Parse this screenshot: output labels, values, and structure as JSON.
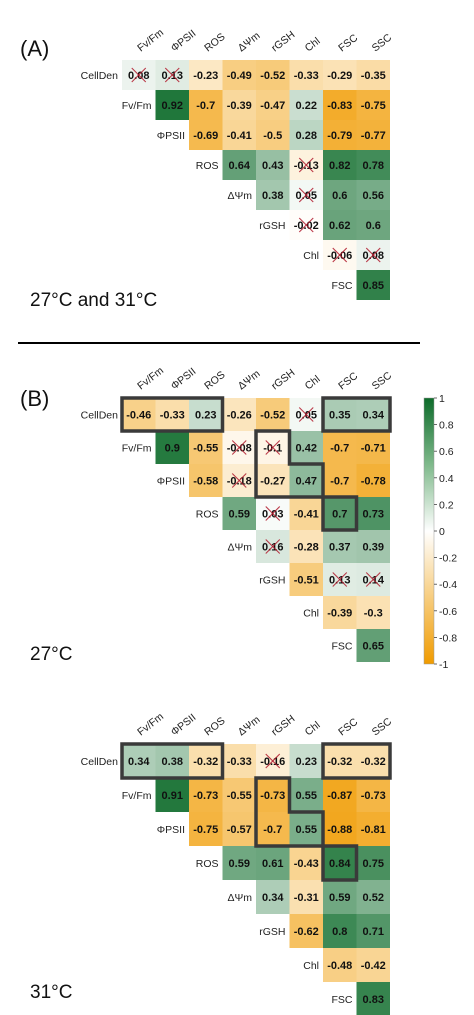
{
  "panels": [
    {
      "tag": "(A)",
      "condition": "27°C and 31°C",
      "row_labels": [
        "CellDen",
        "Fv/Fm",
        "ΦPSII",
        "ROS",
        "ΔΨm",
        "rGSH",
        "Chl",
        "FSC"
      ],
      "col_labels": [
        "Fv/Fm",
        "ΦPSII",
        "ROS",
        "ΔΨm",
        "rGSH",
        "Chl",
        "FSC",
        "SSC"
      ],
      "cells": [
        [
          "0.08",
          "0.13",
          "-0.23",
          "-0.49",
          "-0.52",
          "-0.33",
          "-0.29",
          "-0.35"
        ],
        [
          "0.92",
          "-0.7",
          "-0.39",
          "-0.47",
          "0.22",
          "-0.83",
          "-0.75"
        ],
        [
          "-0.69",
          "-0.41",
          "-0.5",
          "0.28",
          "-0.79",
          "-0.77"
        ],
        [
          "0.64",
          "0.43",
          "-0.13",
          "0.82",
          "0.78"
        ],
        [
          "0.38",
          "0.05",
          "0.6",
          "0.56"
        ],
        [
          "-0.02",
          "0.62",
          "0.6"
        ],
        [
          "-0.06",
          "0.08"
        ],
        [
          "0.85"
        ]
      ],
      "crossed": [
        [
          0,
          0
        ],
        [
          0,
          1
        ],
        [
          3,
          2
        ],
        [
          4,
          1
        ],
        [
          5,
          0
        ],
        [
          6,
          0
        ],
        [
          6,
          1
        ]
      ],
      "highlight_groups": []
    },
    {
      "tag": "(B)",
      "condition": "27°C",
      "row_labels": [
        "CellDen",
        "Fv/Fm",
        "ΦPSII",
        "ROS",
        "ΔΨm",
        "rGSH",
        "Chl",
        "FSC"
      ],
      "col_labels": [
        "Fv/Fm",
        "ΦPSII",
        "ROS",
        "ΔΨm",
        "rGSH",
        "Chl",
        "FSC",
        "SSC"
      ],
      "cells": [
        [
          "-0.46",
          "-0.33",
          "0.23",
          "-0.26",
          "-0.52",
          "0.05",
          "0.35",
          "0.34"
        ],
        [
          "0.9",
          "-0.55",
          "-0.08",
          "-0.1",
          "0.42",
          "-0.7",
          "-0.71"
        ],
        [
          "-0.58",
          "-0.18",
          "-0.27",
          "0.47",
          "-0.7",
          "-0.78"
        ],
        [
          "0.59",
          "0.03",
          "-0.41",
          "0.7",
          "0.73"
        ],
        [
          "0.16",
          "-0.28",
          "0.37",
          "0.39"
        ],
        [
          "-0.51",
          "0.13",
          "0.14"
        ],
        [
          "-0.39",
          "-0.3"
        ],
        [
          "0.65"
        ]
      ],
      "crossed": [
        [
          0,
          5
        ],
        [
          1,
          2
        ],
        [
          1,
          3
        ],
        [
          2,
          1
        ],
        [
          3,
          1
        ],
        [
          4,
          0
        ],
        [
          5,
          1
        ],
        [
          5,
          2
        ]
      ],
      "highlight_groups": [
        [
          [
            0,
            0
          ],
          [
            0,
            1
          ],
          [
            0,
            2
          ]
        ],
        [
          [
            0,
            6
          ],
          [
            0,
            7
          ]
        ],
        [
          [
            1,
            3
          ],
          [
            2,
            2
          ],
          [
            2,
            3
          ],
          [
            3,
            3
          ]
        ],
        [
          [
            5,
            6
          ],
          [
            5,
            7
          ]
        ]
      ]
    },
    {
      "tag": "",
      "condition": "31°C",
      "row_labels": [
        "CellDen",
        "Fv/Fm",
        "ΦPSII",
        "ROS",
        "ΔΨm",
        "rGSH",
        "Chl",
        "FSC"
      ],
      "col_labels": [
        "Fv/Fm",
        "ΦPSII",
        "ROS",
        "ΔΨm",
        "rGSH",
        "Chl",
        "FSC",
        "SSC"
      ],
      "cells": [
        [
          "0.34",
          "0.38",
          "-0.32",
          "-0.33",
          "-0.16",
          "0.23",
          "-0.32",
          "-0.32"
        ],
        [
          "0.91",
          "-0.73",
          "-0.55",
          "-0.73",
          "0.55",
          "-0.87",
          "-0.73"
        ],
        [
          "-0.75",
          "-0.57",
          "-0.7",
          "0.55",
          "-0.88",
          "-0.81"
        ],
        [
          "0.59",
          "0.61",
          "-0.43",
          "0.84",
          "0.75"
        ],
        [
          "0.34",
          "-0.31",
          "0.59",
          "0.52"
        ],
        [
          "-0.62",
          "0.8",
          "0.71"
        ],
        [
          "-0.48",
          "-0.42"
        ],
        [
          "0.83"
        ]
      ],
      "crossed": [
        [
          0,
          4
        ]
      ],
      "highlight_groups": [
        [
          [
            0,
            0
          ],
          [
            0,
            1
          ],
          [
            0,
            2
          ]
        ],
        [
          [
            0,
            6
          ],
          [
            0,
            7
          ]
        ],
        [
          [
            1,
            3
          ],
          [
            2,
            2
          ],
          [
            2,
            3
          ],
          [
            3,
            3
          ]
        ],
        [
          [
            5,
            6
          ],
          [
            5,
            7
          ]
        ]
      ]
    }
  ],
  "legend": {
    "ticks": [
      "1",
      "0.8",
      "0.6",
      "0.4",
      "0.2",
      "0",
      "-0.2",
      "-0.4",
      "-0.6",
      "-0.8",
      "-1"
    ],
    "colors": {
      "positive": "#0d6b2a",
      "zero": "#ffffff",
      "negative": "#f09b00"
    }
  },
  "chart_data": [
    {
      "type": "heatmap",
      "variables": [
        "CellDen",
        "Fv/Fm",
        "ΦPSII",
        "ROS",
        "ΔΨm",
        "rGSH",
        "Chl",
        "FSC",
        "SSC"
      ],
      "condition": "27°C and 31°C",
      "values_upper_triangle": [
        [
          0.08,
          0.13,
          -0.23,
          -0.49,
          -0.52,
          -0.33,
          -0.29,
          -0.35
        ],
        [
          0.92,
          -0.7,
          -0.39,
          -0.47,
          0.22,
          -0.83,
          -0.75
        ],
        [
          -0.69,
          -0.41,
          -0.5,
          0.28,
          -0.79,
          -0.77
        ],
        [
          0.64,
          0.43,
          -0.13,
          0.82,
          0.78
        ],
        [
          0.38,
          0.05,
          0.6,
          0.56
        ],
        [
          -0.02,
          0.62,
          0.6
        ],
        [
          -0.06,
          0.08
        ],
        [
          0.85
        ]
      ],
      "color_range": [
        -1,
        1
      ]
    },
    {
      "type": "heatmap",
      "variables": [
        "CellDen",
        "Fv/Fm",
        "ΦPSII",
        "ROS",
        "ΔΨm",
        "rGSH",
        "Chl",
        "FSC",
        "SSC"
      ],
      "condition": "27°C",
      "values_upper_triangle": [
        [
          -0.46,
          -0.33,
          0.23,
          -0.26,
          -0.52,
          0.05,
          0.35,
          0.34
        ],
        [
          0.9,
          -0.55,
          -0.08,
          -0.1,
          0.42,
          -0.7,
          -0.71
        ],
        [
          -0.58,
          -0.18,
          -0.27,
          0.47,
          -0.7,
          -0.78
        ],
        [
          0.59,
          0.03,
          -0.41,
          0.7,
          0.73
        ],
        [
          0.16,
          -0.28,
          0.37,
          0.39
        ],
        [
          -0.51,
          0.13,
          0.14
        ],
        [
          -0.39,
          -0.3
        ],
        [
          0.65
        ]
      ],
      "color_range": [
        -1,
        1
      ]
    },
    {
      "type": "heatmap",
      "variables": [
        "CellDen",
        "Fv/Fm",
        "ΦPSII",
        "ROS",
        "ΔΨm",
        "rGSH",
        "Chl",
        "FSC",
        "SSC"
      ],
      "condition": "31°C",
      "values_upper_triangle": [
        [
          0.34,
          0.38,
          -0.32,
          -0.33,
          -0.16,
          0.23,
          -0.32,
          -0.32
        ],
        [
          0.91,
          -0.73,
          -0.55,
          -0.73,
          0.55,
          -0.87,
          -0.73
        ],
        [
          -0.75,
          -0.57,
          -0.7,
          0.55,
          -0.88,
          -0.81
        ],
        [
          0.59,
          0.61,
          -0.43,
          0.84,
          0.75
        ],
        [
          0.34,
          -0.31,
          0.59,
          0.52
        ],
        [
          -0.62,
          0.8,
          0.71
        ],
        [
          -0.48,
          -0.42
        ],
        [
          0.83
        ]
      ],
      "color_range": [
        -1,
        1
      ]
    }
  ]
}
